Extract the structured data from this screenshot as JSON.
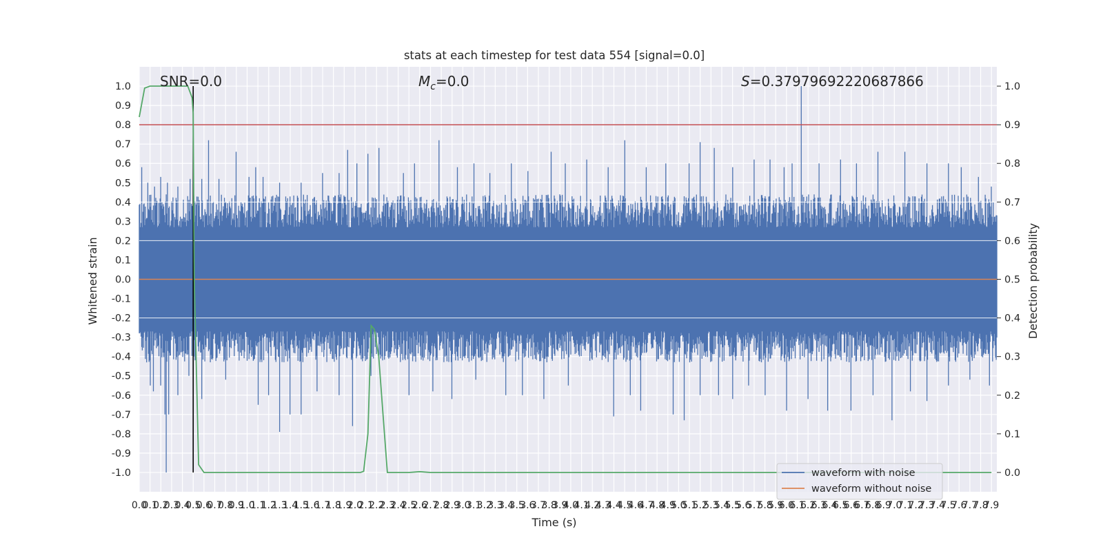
{
  "chart_data": {
    "type": "line",
    "title": "stats at each timestep for test data 554 [signal=0.0]",
    "xlabel": "Time (s)",
    "ylabel": "Whitened strain",
    "y2label": "Detection probability",
    "xlim": [
      0.0,
      7.95
    ],
    "ylim": [
      -1.1,
      1.1
    ],
    "y2lim": [
      -0.05,
      1.05
    ],
    "x_tick_step": 0.1,
    "y_ticks": [
      -1.0,
      -0.9,
      -0.8,
      -0.7,
      -0.6,
      -0.5,
      -0.4,
      -0.3,
      -0.2,
      -0.1,
      0.0,
      0.1,
      0.2,
      0.3,
      0.4,
      0.5,
      0.6,
      0.7,
      0.8,
      0.9,
      1.0
    ],
    "y2_ticks": [
      0.0,
      0.1,
      0.2,
      0.3,
      0.4,
      0.5,
      0.6,
      0.7,
      0.8,
      0.9,
      1.0
    ],
    "grid": true,
    "legend_position": "lower-right",
    "annotations": [
      {
        "id": "snr",
        "text": "SNR=0.0"
      },
      {
        "id": "mc",
        "text_var": "M",
        "text_sub": "c",
        "text_rest": "=0.0"
      },
      {
        "id": "s",
        "text_var": "S",
        "text_rest": "=0.37979692220687866"
      }
    ],
    "series": [
      {
        "name": "waveform with noise",
        "color": "#4c72b0",
        "axis": "left",
        "kind": "noise-envelope",
        "typical_envelope": [
          0.27,
          -0.27
        ],
        "upper_spikes": [
          [
            0.02,
            0.58
          ],
          [
            0.08,
            0.5
          ],
          [
            0.14,
            0.48
          ],
          [
            0.2,
            0.53
          ],
          [
            0.26,
            0.5
          ],
          [
            0.36,
            0.48
          ],
          [
            0.47,
            0.52
          ],
          [
            0.58,
            0.52
          ],
          [
            0.64,
            0.72
          ],
          [
            0.74,
            0.52
          ],
          [
            0.9,
            0.66
          ],
          [
            1.02,
            0.53
          ],
          [
            1.08,
            0.58
          ],
          [
            1.15,
            0.53
          ],
          [
            1.3,
            0.5
          ],
          [
            1.5,
            0.5
          ],
          [
            1.7,
            0.55
          ],
          [
            1.85,
            0.55
          ],
          [
            1.93,
            0.67
          ],
          [
            2.02,
            0.6
          ],
          [
            2.12,
            0.65
          ],
          [
            2.22,
            0.68
          ],
          [
            2.45,
            0.55
          ],
          [
            2.55,
            0.6
          ],
          [
            2.78,
            0.72
          ],
          [
            2.95,
            0.58
          ],
          [
            3.1,
            0.6
          ],
          [
            3.25,
            0.55
          ],
          [
            3.45,
            0.6
          ],
          [
            3.6,
            0.56
          ],
          [
            3.82,
            0.66
          ],
          [
            3.95,
            0.6
          ],
          [
            4.15,
            0.62
          ],
          [
            4.35,
            0.58
          ],
          [
            4.5,
            0.72
          ],
          [
            4.7,
            0.58
          ],
          [
            4.88,
            0.6
          ],
          [
            5.1,
            0.6
          ],
          [
            5.2,
            0.71
          ],
          [
            5.33,
            0.68
          ],
          [
            5.5,
            0.58
          ],
          [
            5.7,
            0.62
          ],
          [
            5.85,
            0.62
          ],
          [
            5.98,
            0.58
          ],
          [
            6.05,
            0.6
          ],
          [
            6.14,
            1.0
          ],
          [
            6.3,
            0.6
          ],
          [
            6.5,
            0.62
          ],
          [
            6.65,
            0.6
          ],
          [
            6.85,
            0.66
          ],
          [
            7.1,
            0.66
          ],
          [
            7.3,
            0.6
          ],
          [
            7.5,
            0.6
          ],
          [
            7.62,
            0.58
          ],
          [
            7.78,
            0.53
          ],
          [
            7.9,
            0.48
          ]
        ],
        "lower_spikes": [
          [
            0.02,
            -0.35
          ],
          [
            0.1,
            -0.55
          ],
          [
            0.13,
            -0.58
          ],
          [
            0.2,
            -0.55
          ],
          [
            0.24,
            -0.7
          ],
          [
            0.25,
            -1.0
          ],
          [
            0.27,
            -0.7
          ],
          [
            0.36,
            -0.6
          ],
          [
            0.46,
            -0.5
          ],
          [
            0.5,
            -0.6
          ],
          [
            0.58,
            -0.62
          ],
          [
            0.8,
            -0.52
          ],
          [
            1.1,
            -0.65
          ],
          [
            1.2,
            -0.6
          ],
          [
            1.3,
            -0.79
          ],
          [
            1.4,
            -0.7
          ],
          [
            1.5,
            -0.7
          ],
          [
            1.65,
            -0.58
          ],
          [
            1.85,
            -0.6
          ],
          [
            1.98,
            -0.76
          ],
          [
            2.15,
            -0.5
          ],
          [
            2.5,
            -0.6
          ],
          [
            2.72,
            -0.58
          ],
          [
            2.9,
            -0.62
          ],
          [
            3.12,
            -0.52
          ],
          [
            3.4,
            -0.6
          ],
          [
            3.55,
            -0.6
          ],
          [
            3.75,
            -0.62
          ],
          [
            3.98,
            -0.55
          ],
          [
            4.4,
            -0.71
          ],
          [
            4.55,
            -0.6
          ],
          [
            4.65,
            -0.68
          ],
          [
            4.95,
            -0.7
          ],
          [
            5.05,
            -0.73
          ],
          [
            5.2,
            -0.6
          ],
          [
            5.37,
            -0.6
          ],
          [
            5.5,
            -0.62
          ],
          [
            5.65,
            -0.55
          ],
          [
            5.8,
            -0.6
          ],
          [
            6.0,
            -0.68
          ],
          [
            6.2,
            -0.62
          ],
          [
            6.38,
            -0.68
          ],
          [
            6.6,
            -0.68
          ],
          [
            6.8,
            -0.6
          ],
          [
            6.98,
            -0.73
          ],
          [
            7.15,
            -0.58
          ],
          [
            7.3,
            -0.63
          ],
          [
            7.5,
            -0.55
          ],
          [
            7.7,
            -0.52
          ],
          [
            7.88,
            -0.55
          ]
        ]
      },
      {
        "name": "waveform without noise",
        "color": "#dd8452",
        "axis": "left",
        "x": [
          0.0,
          7.95
        ],
        "y": [
          0.0,
          0.0
        ]
      },
      {
        "color": "#55a868",
        "axis": "right",
        "x": [
          0.0,
          0.05,
          0.1,
          0.2,
          0.3,
          0.4,
          0.45,
          0.49,
          0.5,
          0.51,
          0.55,
          0.6,
          0.8,
          1.0,
          1.5,
          2.0,
          2.05,
          2.08,
          2.12,
          2.15,
          2.18,
          2.22,
          2.26,
          2.3,
          2.5,
          2.6,
          2.7,
          3.0,
          5.0,
          7.9
        ],
        "y": [
          0.92,
          0.995,
          1.0,
          1.0,
          1.0,
          1.0,
          1.0,
          0.97,
          0.93,
          0.5,
          0.02,
          0.0,
          0.0,
          0.0,
          0.0,
          0.0,
          0.0,
          0.003,
          0.1,
          0.38,
          0.37,
          0.3,
          0.15,
          0.0,
          0.0,
          0.002,
          0.0,
          0.0,
          0.0,
          0.0
        ]
      },
      {
        "color": "#c44e52",
        "axis": "left",
        "kind": "hline",
        "y": 0.8
      },
      {
        "color": "#000000",
        "axis": "left",
        "kind": "vline",
        "x": 0.5,
        "y": [
          -1.0,
          1.0
        ]
      }
    ]
  }
}
